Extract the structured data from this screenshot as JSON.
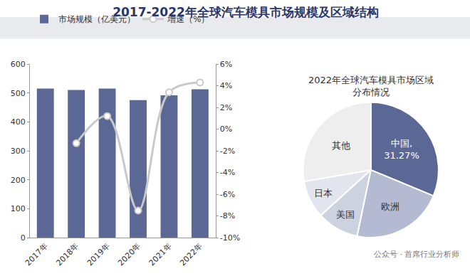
{
  "title": "2017-2022年全球汽车模具市场规模及区域结构",
  "footer": "公众号 · 首席行业分析师",
  "chart_data": [
    {
      "type": "bar",
      "categories": [
        "2017年",
        "2018年",
        "2019年",
        "2020年",
        "2021年",
        "2022年"
      ],
      "series": [
        {
          "name": "市场规模（亿美元）",
          "type": "bar",
          "color": "#5b6896",
          "values": [
            515,
            510,
            515,
            475,
            492,
            513
          ]
        },
        {
          "name": "增速（%）",
          "type": "line",
          "axis": "y2",
          "color": "#c9c9c9",
          "marker": "circle",
          "values": [
            null,
            -1.3,
            1.2,
            -7.5,
            3.4,
            4.3
          ]
        }
      ],
      "ylim": [
        0,
        600
      ],
      "yticks": [
        0,
        100,
        200,
        300,
        400,
        500,
        600
      ],
      "y2lim": [
        -10,
        6
      ],
      "y2ticks": [
        {
          "value": -10,
          "label": "-10%"
        },
        {
          "value": -8,
          "label": "-8%"
        },
        {
          "value": -6,
          "label": "-6%"
        },
        {
          "value": -4,
          "label": "-4%"
        },
        {
          "value": -2,
          "label": "-2%"
        },
        {
          "value": 0,
          "label": "0%"
        },
        {
          "value": 2,
          "label": "2%"
        },
        {
          "value": 4,
          "label": "4%"
        },
        {
          "value": 6,
          "label": "6%"
        }
      ],
      "legend": "top-left",
      "grid": false
    },
    {
      "type": "pie",
      "title": "2022年全球汽车模具市场区域分布情况",
      "categories": [
        "中国",
        "欧洲",
        "美国",
        "日本",
        "其他"
      ],
      "values": [
        31.27,
        22,
        10,
        9,
        27.73
      ],
      "value_labels": [
        "中国, 31.27%",
        null,
        null,
        null,
        null
      ],
      "colors": [
        "#5b6896",
        "#b3bad1",
        "#cdd2e1",
        "#e2e5ee",
        "#eeeeee"
      ]
    }
  ]
}
